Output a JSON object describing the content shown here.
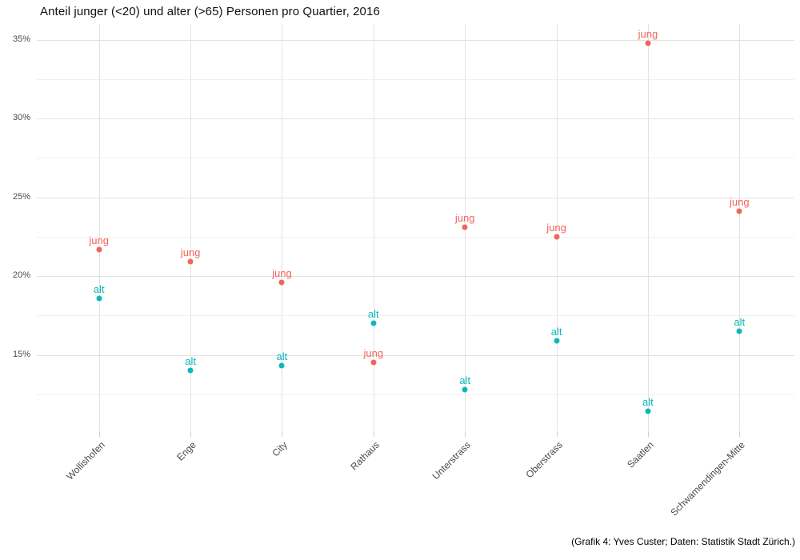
{
  "caption": "(Grafik 4: Yves Custer; Daten: Statistik Stadt Zürich.)",
  "chart_data": {
    "type": "scatter",
    "title": "Anteil junger (<20) und alter (>65) Personen pro Quartier, 2016",
    "xlabel": "",
    "ylabel": "",
    "categories": [
      "Wollishofen",
      "Enge",
      "City",
      "Rathaus",
      "Unterstrass",
      "Oberstrass",
      "Saatlen",
      "Schwamendingen-Mitte"
    ],
    "series": [
      {
        "name": "jung",
        "point_label": "jung",
        "color": "#f4635b",
        "values": [
          21.7,
          20.9,
          19.6,
          14.5,
          23.1,
          22.5,
          34.8,
          24.1
        ]
      },
      {
        "name": "alt",
        "point_label": "alt",
        "color": "#0cb7bb",
        "values": [
          18.6,
          14.0,
          14.3,
          17.0,
          12.8,
          15.9,
          11.4,
          16.5
        ]
      }
    ],
    "y_major_ticks": [
      35,
      30,
      25,
      20,
      15
    ],
    "y_minor_ticks": [
      32.5,
      27.5,
      22.5,
      17.5,
      12.5
    ],
    "y_tick_suffix": "%",
    "ylim": [
      10.1,
      36.0
    ],
    "grid": "major and minor horizontal, vertical per category",
    "legend_position": "none (points labelled directly)"
  },
  "style_colors": {
    "grid_major": "#e3e3e3",
    "grid_minor": "#f0f0f0",
    "axis_text": "#4a4a4a",
    "title_text": "#111111"
  }
}
